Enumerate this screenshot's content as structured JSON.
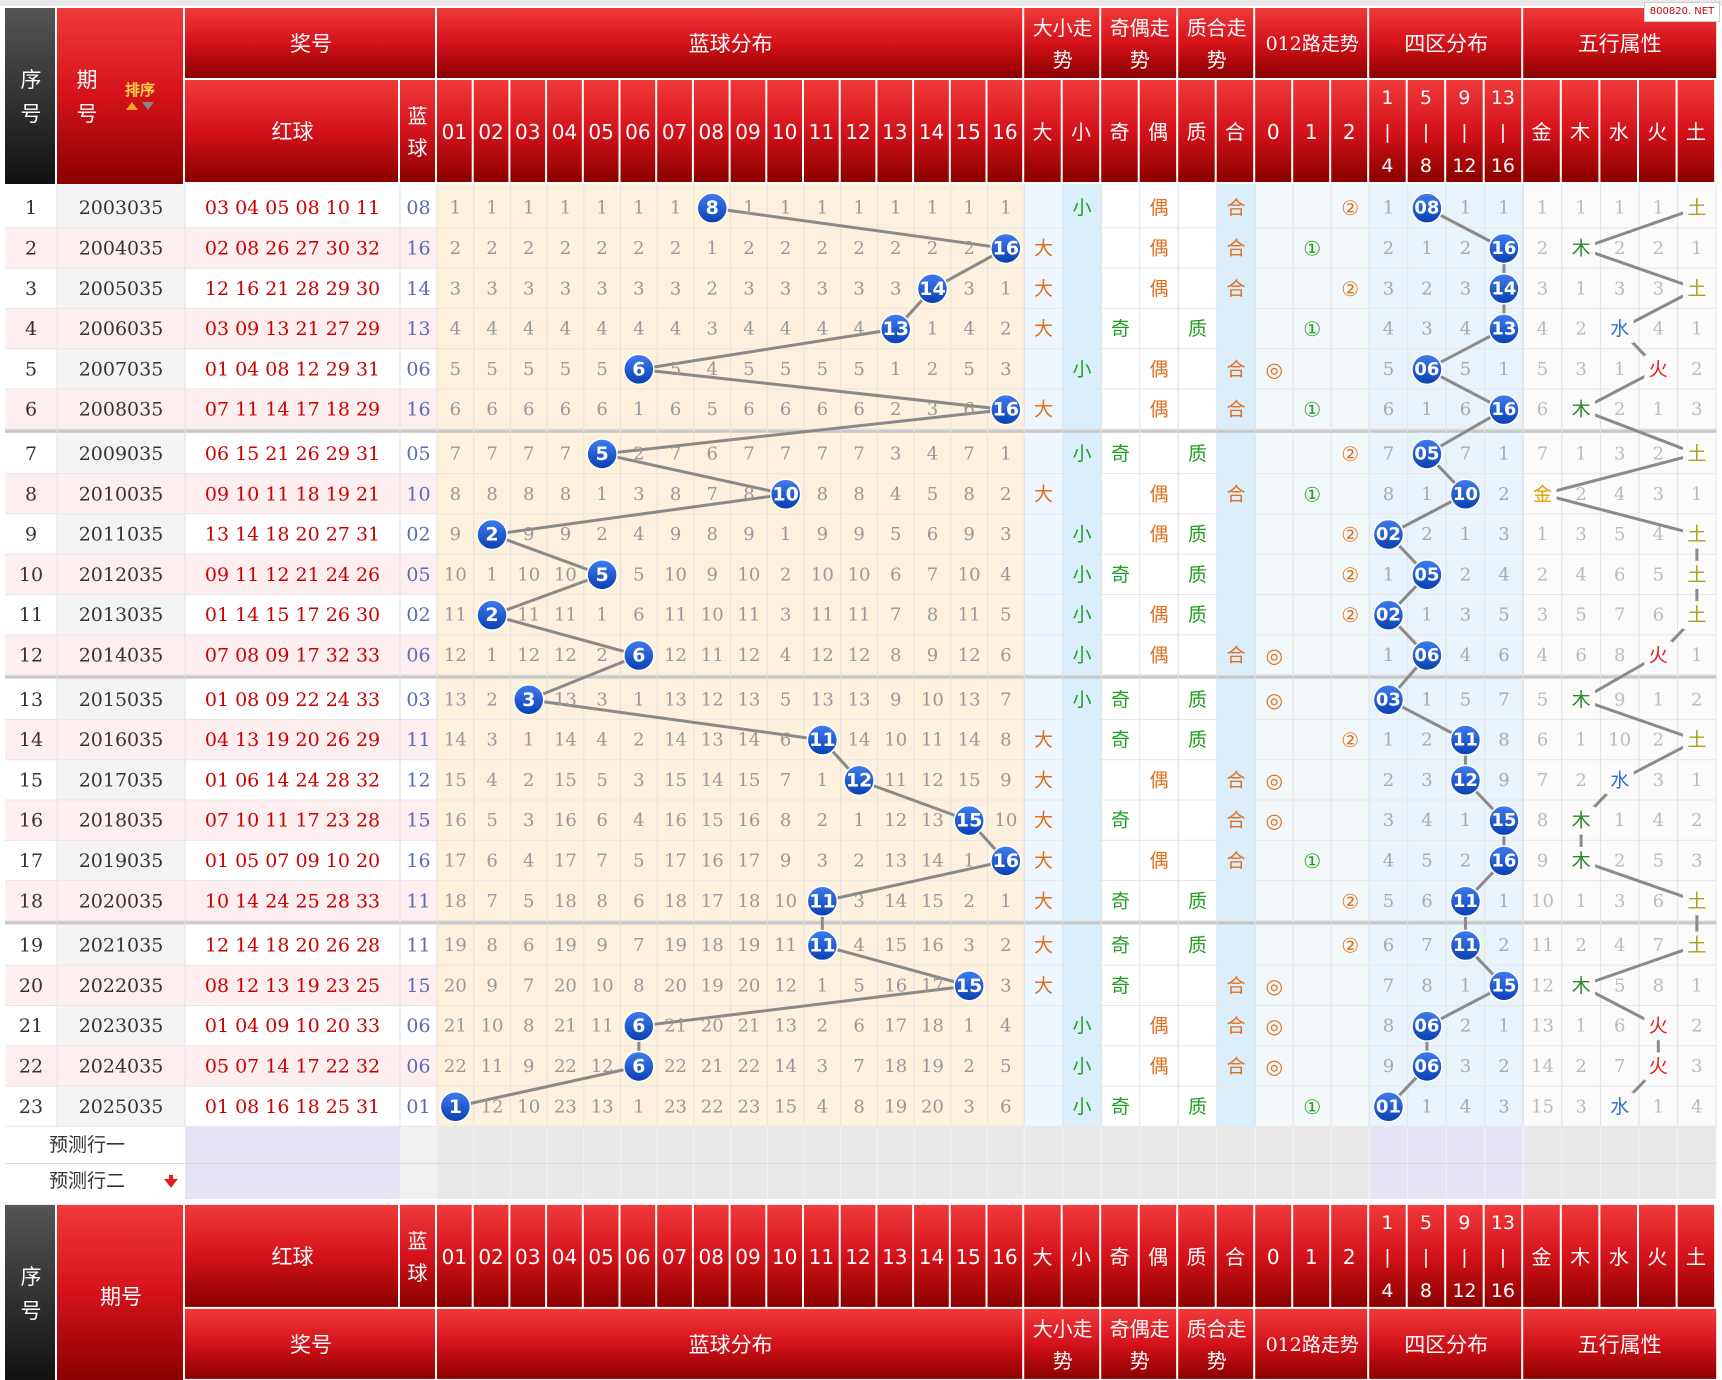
{
  "watermark": "800820. NET",
  "header": {
    "seq": "序号",
    "period": "期号",
    "sort": "排序",
    "prize": "奖号",
    "red": "红球",
    "blue_label": "蓝球",
    "blue_dist": "蓝球分布",
    "big_small": "大小走势",
    "odd_even": "奇偶走势",
    "prime_comp": "质合走势",
    "road012": "012路走势",
    "four_zone": "四区分布",
    "five_elem": "五行属性",
    "blue_cols": [
      "01",
      "02",
      "03",
      "04",
      "05",
      "06",
      "07",
      "08",
      "09",
      "10",
      "11",
      "12",
      "13",
      "14",
      "15",
      "16"
    ],
    "bs_cols": [
      "大",
      "小"
    ],
    "oe_cols": [
      "奇",
      "偶"
    ],
    "pc_cols": [
      "质",
      "合"
    ],
    "road_cols": [
      "0",
      "1",
      "2"
    ],
    "zone_cols": [
      [
        "1",
        "|",
        "4"
      ],
      [
        "5",
        "|",
        "8"
      ],
      [
        "9",
        "|",
        "12"
      ],
      [
        "13",
        "|",
        "16"
      ]
    ],
    "elem_cols": [
      "金",
      "木",
      "水",
      "火",
      "土"
    ]
  },
  "predict_rows": [
    "预测行一",
    "预测行二"
  ],
  "colors": {
    "header_red": "#d4121a",
    "dark": "#2a2a2a",
    "ball_blue": "#1450c8",
    "red_text": "#cc0000",
    "blue_text": "#5a6ab8",
    "dist_bg": "#fdf0dc",
    "light_blue_bg": "#dbeefb"
  },
  "rows": [
    {
      "seq": "1",
      "period": "2003035",
      "red": "03 04 05 08 10 11",
      "blue": "08",
      "blue_miss": [
        1,
        1,
        1,
        1,
        1,
        1,
        1,
        0,
        1,
        1,
        1,
        1,
        1,
        1,
        1,
        1
      ],
      "bs": "小",
      "oe": "偶",
      "pc": "合",
      "road": "②",
      "zone_miss": [
        1,
        0,
        1,
        1
      ],
      "elem_miss": [
        1,
        1,
        1,
        1,
        0
      ],
      "elem": "土"
    },
    {
      "seq": "2",
      "period": "2004035",
      "red": "02 08 26 27 30 32",
      "blue": "16",
      "blue_miss": [
        2,
        2,
        2,
        2,
        2,
        2,
        2,
        1,
        2,
        2,
        2,
        2,
        2,
        2,
        2,
        0
      ],
      "bs": "大",
      "oe": "偶",
      "pc": "合",
      "road": "①",
      "zone_miss": [
        2,
        1,
        2,
        0
      ],
      "elem_miss": [
        2,
        0,
        2,
        2,
        1
      ],
      "elem": "木"
    },
    {
      "seq": "3",
      "period": "2005035",
      "red": "12 16 21 28 29 30",
      "blue": "14",
      "blue_miss": [
        3,
        3,
        3,
        3,
        3,
        3,
        3,
        2,
        3,
        3,
        3,
        3,
        3,
        0,
        3,
        1
      ],
      "bs": "大",
      "oe": "偶",
      "pc": "合",
      "road": "②",
      "zone_miss": [
        3,
        2,
        3,
        0
      ],
      "elem_miss": [
        3,
        1,
        3,
        3,
        0
      ],
      "elem": "土"
    },
    {
      "seq": "4",
      "period": "2006035",
      "red": "03 09 13 21 27 29",
      "blue": "13",
      "blue_miss": [
        4,
        4,
        4,
        4,
        4,
        4,
        4,
        3,
        4,
        4,
        4,
        4,
        0,
        1,
        4,
        2
      ],
      "bs": "大",
      "oe": "奇",
      "pc": "质",
      "road": "①",
      "zone_miss": [
        4,
        3,
        4,
        0
      ],
      "elem_miss": [
        4,
        2,
        0,
        4,
        1
      ],
      "elem": "水"
    },
    {
      "seq": "5",
      "period": "2007035",
      "red": "01 04 08 12 29 31",
      "blue": "06",
      "blue_miss": [
        5,
        5,
        5,
        5,
        5,
        0,
        5,
        4,
        5,
        5,
        5,
        5,
        1,
        2,
        5,
        3
      ],
      "bs": "小",
      "oe": "偶",
      "pc": "合",
      "road": "◎",
      "zone_miss": [
        5,
        0,
        5,
        1
      ],
      "elem_miss": [
        5,
        3,
        1,
        0,
        2
      ],
      "elem": "火"
    },
    {
      "seq": "6",
      "period": "2008035",
      "red": "07 11 14 17 18 29",
      "blue": "16",
      "blue_miss": [
        6,
        6,
        6,
        6,
        6,
        1,
        6,
        5,
        6,
        6,
        6,
        6,
        2,
        3,
        6,
        0
      ],
      "bs": "大",
      "oe": "偶",
      "pc": "合",
      "road": "①",
      "zone_miss": [
        6,
        1,
        6,
        0
      ],
      "elem_miss": [
        6,
        0,
        2,
        1,
        3
      ],
      "elem": "木"
    },
    {
      "seq": "7",
      "period": "2009035",
      "red": "06 15 21 26 29 31",
      "blue": "05",
      "blue_miss": [
        7,
        7,
        7,
        7,
        0,
        2,
        7,
        6,
        7,
        7,
        7,
        7,
        3,
        4,
        7,
        1
      ],
      "bs": "小",
      "oe": "奇",
      "pc": "质",
      "road": "②",
      "zone_miss": [
        7,
        0,
        7,
        1
      ],
      "elem_miss": [
        7,
        1,
        3,
        2,
        0
      ],
      "elem": "土"
    },
    {
      "seq": "8",
      "period": "2010035",
      "red": "09 10 11 18 19 21",
      "blue": "10",
      "blue_miss": [
        8,
        8,
        8,
        8,
        1,
        3,
        8,
        7,
        8,
        0,
        8,
        8,
        4,
        5,
        8,
        2
      ],
      "bs": "大",
      "oe": "偶",
      "pc": "合",
      "road": "①",
      "zone_miss": [
        8,
        1,
        0,
        2
      ],
      "elem_miss": [
        0,
        2,
        4,
        3,
        1
      ],
      "elem": "金"
    },
    {
      "seq": "9",
      "period": "2011035",
      "red": "13 14 18 20 27 31",
      "blue": "02",
      "blue_miss": [
        9,
        0,
        9,
        9,
        2,
        4,
        9,
        8,
        9,
        1,
        9,
        9,
        5,
        6,
        9,
        3
      ],
      "bs": "小",
      "oe": "偶",
      "pc": "质",
      "road": "②",
      "zone_miss": [
        0,
        2,
        1,
        3
      ],
      "elem_miss": [
        1,
        3,
        5,
        4,
        0
      ],
      "elem": "土"
    },
    {
      "seq": "10",
      "period": "2012035",
      "red": "09 11 12 21 24 26",
      "blue": "05",
      "blue_miss": [
        10,
        1,
        10,
        10,
        0,
        5,
        10,
        9,
        10,
        2,
        10,
        10,
        6,
        7,
        10,
        4
      ],
      "bs": "小",
      "oe": "奇",
      "pc": "质",
      "road": "②",
      "zone_miss": [
        1,
        0,
        2,
        4
      ],
      "elem_miss": [
        2,
        4,
        6,
        5,
        0
      ],
      "elem": "土"
    },
    {
      "seq": "11",
      "period": "2013035",
      "red": "01 14 15 17 26 30",
      "blue": "02",
      "blue_miss": [
        11,
        0,
        11,
        11,
        1,
        6,
        11,
        10,
        11,
        3,
        11,
        11,
        7,
        8,
        11,
        5
      ],
      "bs": "小",
      "oe": "偶",
      "pc": "质",
      "road": "②",
      "zone_miss": [
        0,
        1,
        3,
        5
      ],
      "elem_miss": [
        3,
        5,
        7,
        6,
        0
      ],
      "elem": "土"
    },
    {
      "seq": "12",
      "period": "2014035",
      "red": "07 08 09 17 32 33",
      "blue": "06",
      "blue_miss": [
        12,
        1,
        12,
        12,
        2,
        0,
        12,
        11,
        12,
        4,
        12,
        12,
        8,
        9,
        12,
        6
      ],
      "bs": "小",
      "oe": "偶",
      "pc": "合",
      "road": "◎",
      "zone_miss": [
        1,
        0,
        4,
        6
      ],
      "elem_miss": [
        4,
        6,
        8,
        0,
        1
      ],
      "elem": "火"
    },
    {
      "seq": "13",
      "period": "2015035",
      "red": "01 08 09 22 24 33",
      "blue": "03",
      "blue_miss": [
        13,
        2,
        0,
        13,
        3,
        1,
        13,
        12,
        13,
        5,
        13,
        13,
        9,
        10,
        13,
        7
      ],
      "bs": "小",
      "oe": "奇",
      "pc": "质",
      "road": "◎",
      "zone_miss": [
        0,
        1,
        5,
        7
      ],
      "elem_miss": [
        5,
        0,
        9,
        1,
        2
      ],
      "elem": "木"
    },
    {
      "seq": "14",
      "period": "2016035",
      "red": "04 13 19 20 26 29",
      "blue": "11",
      "blue_miss": [
        14,
        3,
        1,
        14,
        4,
        2,
        14,
        13,
        14,
        6,
        0,
        14,
        10,
        11,
        14,
        8
      ],
      "bs": "大",
      "oe": "奇",
      "pc": "质",
      "road": "②",
      "zone_miss": [
        1,
        2,
        0,
        8
      ],
      "elem_miss": [
        6,
        1,
        10,
        2,
        0
      ],
      "elem": "土"
    },
    {
      "seq": "15",
      "period": "2017035",
      "red": "01 06 14 24 28 32",
      "blue": "12",
      "blue_miss": [
        15,
        4,
        2,
        15,
        5,
        3,
        15,
        14,
        15,
        7,
        1,
        0,
        11,
        12,
        15,
        9
      ],
      "bs": "大",
      "oe": "偶",
      "pc": "合",
      "road": "◎",
      "zone_miss": [
        2,
        3,
        0,
        9
      ],
      "elem_miss": [
        7,
        2,
        0,
        3,
        1
      ],
      "elem": "水"
    },
    {
      "seq": "16",
      "period": "2018035",
      "red": "07 10 11 17 23 28",
      "blue": "15",
      "blue_miss": [
        16,
        5,
        3,
        16,
        6,
        4,
        16,
        15,
        16,
        8,
        2,
        1,
        12,
        13,
        0,
        10
      ],
      "bs": "大",
      "oe": "奇",
      "pc": "合",
      "road": "◎",
      "zone_miss": [
        3,
        4,
        1,
        0
      ],
      "elem_miss": [
        8,
        0,
        1,
        4,
        2
      ],
      "elem": "木"
    },
    {
      "seq": "17",
      "period": "2019035",
      "red": "01 05 07 09 10 20",
      "blue": "16",
      "blue_miss": [
        17,
        6,
        4,
        17,
        7,
        5,
        17,
        16,
        17,
        9,
        3,
        2,
        13,
        14,
        1,
        0
      ],
      "bs": "大",
      "oe": "偶",
      "pc": "合",
      "road": "①",
      "zone_miss": [
        4,
        5,
        2,
        0
      ],
      "elem_miss": [
        9,
        0,
        2,
        5,
        3
      ],
      "elem": "木"
    },
    {
      "seq": "18",
      "period": "2020035",
      "red": "10 14 24 25 28 33",
      "blue": "11",
      "blue_miss": [
        18,
        7,
        5,
        18,
        8,
        6,
        18,
        17,
        18,
        10,
        0,
        3,
        14,
        15,
        2,
        1
      ],
      "bs": "大",
      "oe": "奇",
      "pc": "质",
      "road": "②",
      "zone_miss": [
        5,
        6,
        0,
        1
      ],
      "elem_miss": [
        10,
        1,
        3,
        6,
        0
      ],
      "elem": "土"
    },
    {
      "seq": "19",
      "period": "2021035",
      "red": "12 14 18 20 26 28",
      "blue": "11",
      "blue_miss": [
        19,
        8,
        6,
        19,
        9,
        7,
        19,
        18,
        19,
        11,
        0,
        4,
        15,
        16,
        3,
        2
      ],
      "bs": "大",
      "oe": "奇",
      "pc": "质",
      "road": "②",
      "zone_miss": [
        6,
        7,
        0,
        2
      ],
      "elem_miss": [
        11,
        2,
        4,
        7,
        0
      ],
      "elem": "土"
    },
    {
      "seq": "20",
      "period": "2022035",
      "red": "08 12 13 19 23 25",
      "blue": "15",
      "blue_miss": [
        20,
        9,
        7,
        20,
        10,
        8,
        20,
        19,
        20,
        12,
        1,
        5,
        16,
        17,
        0,
        3
      ],
      "bs": "大",
      "oe": "奇",
      "pc": "合",
      "road": "◎",
      "zone_miss": [
        7,
        8,
        1,
        0
      ],
      "elem_miss": [
        12,
        0,
        5,
        8,
        1
      ],
      "elem": "木"
    },
    {
      "seq": "21",
      "period": "2023035",
      "red": "01 04 09 10 20 33",
      "blue": "06",
      "blue_miss": [
        21,
        10,
        8,
        21,
        11,
        0,
        21,
        20,
        21,
        13,
        2,
        6,
        17,
        18,
        1,
        4
      ],
      "bs": "小",
      "oe": "偶",
      "pc": "合",
      "road": "◎",
      "zone_miss": [
        8,
        0,
        2,
        1
      ],
      "elem_miss": [
        13,
        1,
        6,
        0,
        2
      ],
      "elem": "火"
    },
    {
      "seq": "22",
      "period": "2024035",
      "red": "05 07 14 17 22 32",
      "blue": "06",
      "blue_miss": [
        22,
        11,
        9,
        22,
        12,
        0,
        22,
        21,
        22,
        14,
        3,
        7,
        18,
        19,
        2,
        5
      ],
      "bs": "小",
      "oe": "偶",
      "pc": "合",
      "road": "◎",
      "zone_miss": [
        9,
        0,
        3,
        2
      ],
      "elem_miss": [
        14,
        2,
        7,
        0,
        3
      ],
      "elem": "火"
    },
    {
      "seq": "23",
      "period": "2025035",
      "red": "01 08 16 18 25 31",
      "blue": "01",
      "blue_miss": [
        0,
        12,
        10,
        23,
        13,
        1,
        23,
        22,
        23,
        15,
        4,
        8,
        19,
        20,
        3,
        6
      ],
      "bs": "小",
      "oe": "奇",
      "pc": "质",
      "road": "①",
      "zone_miss": [
        0,
        1,
        4,
        3
      ],
      "elem_miss": [
        15,
        3,
        0,
        1,
        4
      ],
      "elem": "水"
    }
  ]
}
